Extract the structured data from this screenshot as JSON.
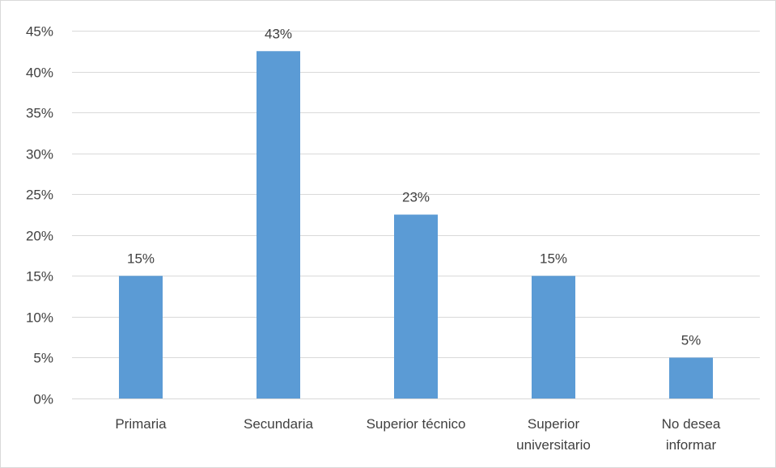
{
  "chart_data": {
    "type": "bar",
    "categories": [
      [
        "Primaria"
      ],
      [
        "Secundaria"
      ],
      [
        "Superior técnico"
      ],
      [
        "Superior",
        "universitario"
      ],
      [
        "No desea",
        "informar"
      ]
    ],
    "values": [
      15,
      42.5,
      22.5,
      15,
      5
    ],
    "data_labels": [
      "15%",
      "43%",
      "23%",
      "15%",
      "5%"
    ],
    "ylim": [
      0,
      45
    ],
    "yticks": [
      0,
      5,
      10,
      15,
      20,
      25,
      30,
      35,
      40,
      45
    ],
    "ytick_labels": [
      "0%",
      "5%",
      "10%",
      "15%",
      "20%",
      "25%",
      "30%",
      "35%",
      "40%",
      "45%"
    ],
    "grid": true,
    "title": "",
    "xlabel": "",
    "ylabel": "",
    "colors": {
      "bar": "#5b9bd5",
      "grid": "#d9d9d9",
      "text": "#404040"
    }
  }
}
